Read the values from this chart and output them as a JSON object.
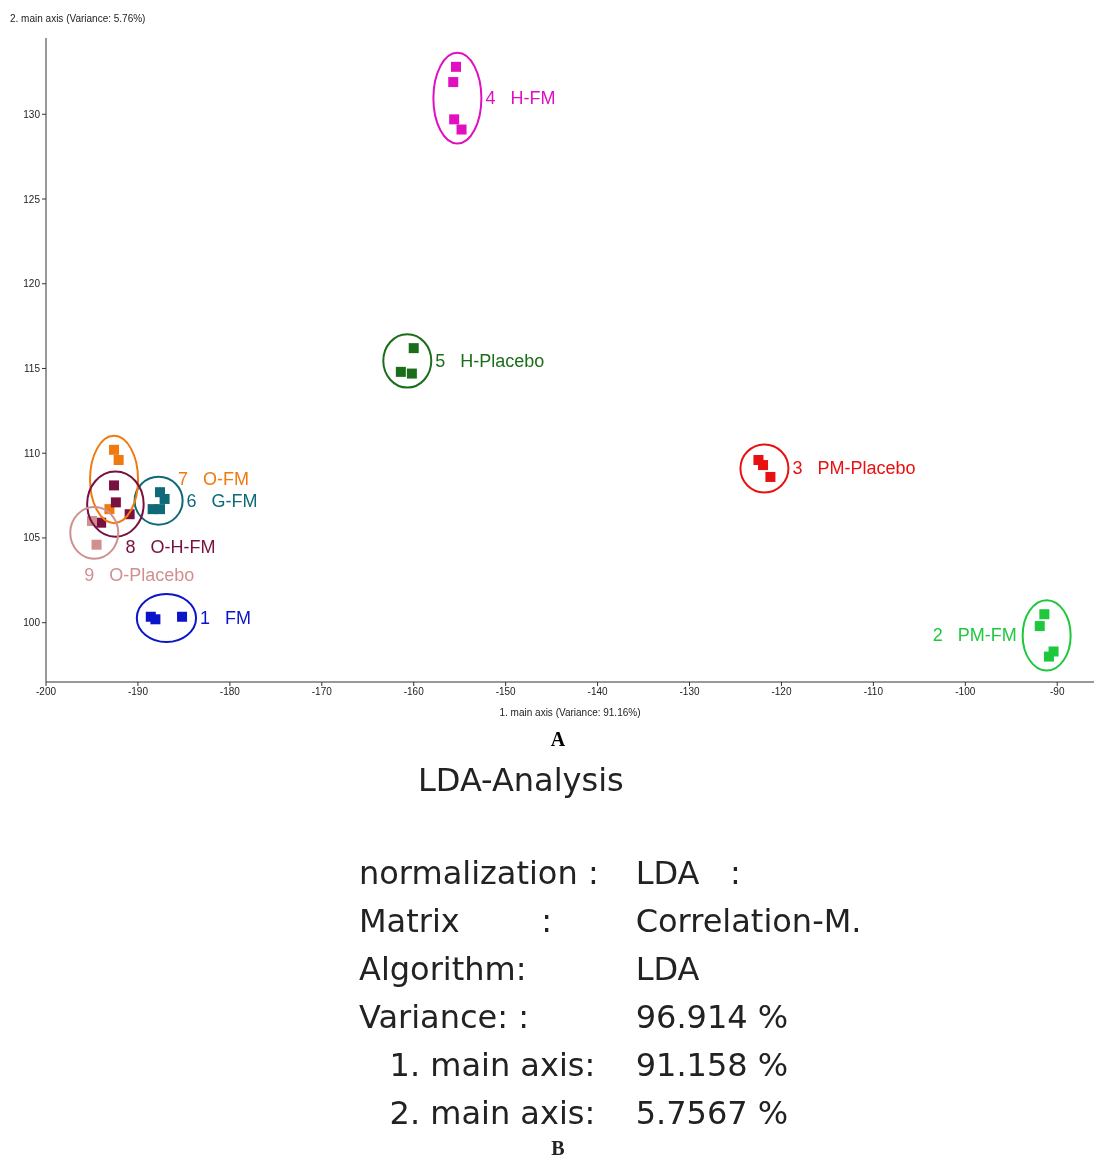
{
  "chart_data": [
    {
      "type": "scatter",
      "xlabel": "1. main axis (Variance: 91.16%)",
      "ylabel": "2. main axis (Variance: 5.76%)",
      "marker": "square",
      "xlim": [
        -200,
        -86
      ],
      "xticks": [
        -200,
        -190,
        -180,
        -170,
        -160,
        -150,
        -140,
        -130,
        -120,
        -110,
        -100,
        -90
      ],
      "ylim": [
        96.5,
        134.5
      ],
      "yticks": [
        100,
        105,
        110,
        115,
        120,
        125,
        130
      ],
      "annotations": [
        "A"
      ],
      "series": [
        {
          "name": "1   FM",
          "color": "#0a14c8",
          "x": [
            -188.6,
            -188.1,
            -185.2
          ],
          "values": [
            100.35,
            100.2,
            100.35
          ]
        },
        {
          "name": "2   PM-FM",
          "color": "#1ec83c",
          "x": [
            -91.4,
            -91.9,
            -90.4,
            -90.9
          ],
          "values": [
            100.5,
            99.8,
            98.3,
            98.0
          ]
        },
        {
          "name": "3   PM-Placebo",
          "color": "#e81010",
          "x": [
            -122.5,
            -122.0,
            -121.2
          ],
          "values": [
            109.6,
            109.3,
            108.6
          ]
        },
        {
          "name": "4   H-FM",
          "color": "#e010c0",
          "x": [
            -155.4,
            -155.7,
            -155.6,
            -154.8
          ],
          "values": [
            132.8,
            131.9,
            129.7,
            129.1
          ]
        },
        {
          "name": "5   H-Placebo",
          "color": "#1a6e1a",
          "x": [
            -160.0,
            -161.4,
            -160.2
          ],
          "values": [
            116.2,
            114.8,
            114.7
          ]
        },
        {
          "name": "6   G-FM",
          "color": "#0e6a78",
          "x": [
            -187.6,
            -187.1,
            -188.4,
            -187.6
          ],
          "values": [
            107.7,
            107.3,
            106.7,
            106.7
          ]
        },
        {
          "name": "7   O-FM",
          "color": "#ee7a10",
          "x": [
            -192.6,
            -192.1,
            -193.1
          ],
          "values": [
            110.2,
            109.6,
            106.7
          ]
        },
        {
          "name": "8   O-H-FM",
          "color": "#7a1040",
          "x": [
            -192.6,
            -192.4,
            -190.9,
            -194.0
          ],
          "values": [
            108.1,
            107.1,
            106.4,
            105.9
          ]
        },
        {
          "name": "9   O-Placebo",
          "color": "#d09090",
          "x": [
            -195.0,
            -194.5
          ],
          "values": [
            106.0,
            104.6
          ]
        }
      ]
    },
    {
      "type": "other",
      "title": "LDA-Analysis",
      "annotations": [
        "normalization :",
        "LDA   :",
        "Matrix        :",
        "Correlation-M.",
        "Algorithm:",
        "LDA",
        "Variance: :",
        "96.914 %",
        "   1. main axis:",
        "91.158 %",
        "   2. main axis:",
        "5.7567 %",
        "B"
      ]
    }
  ]
}
